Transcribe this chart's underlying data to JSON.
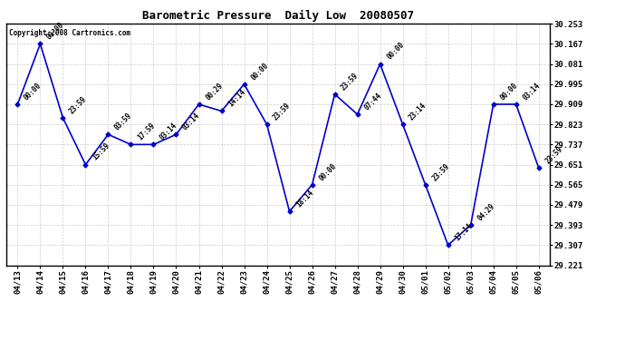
{
  "title": "Barometric Pressure  Daily Low  20080507",
  "copyright": "Copyright 2008 Cartronics.com",
  "line_color": "#0000cc",
  "marker_color": "#0000cc",
  "background_color": "#ffffff",
  "plot_bg_color": "#ffffff",
  "grid_color": "#cccccc",
  "text_color": "#000000",
  "ylim": [
    29.221,
    30.253
  ],
  "yticks": [
    29.221,
    29.307,
    29.393,
    29.479,
    29.565,
    29.651,
    29.737,
    29.823,
    29.909,
    29.995,
    30.081,
    30.167,
    30.253
  ],
  "categories": [
    "04/13",
    "04/14",
    "04/15",
    "04/16",
    "04/17",
    "04/18",
    "04/19",
    "04/20",
    "04/21",
    "04/22",
    "04/23",
    "04/24",
    "04/25",
    "04/26",
    "04/27",
    "04/28",
    "04/29",
    "04/30",
    "05/01",
    "05/02",
    "05/03",
    "05/04",
    "05/05",
    "05/06"
  ],
  "values": [
    29.909,
    30.167,
    29.851,
    29.651,
    29.78,
    29.737,
    29.737,
    29.78,
    29.909,
    29.88,
    29.995,
    29.823,
    29.451,
    29.565,
    29.952,
    29.866,
    30.081,
    29.823,
    29.565,
    29.307,
    29.393,
    29.909,
    29.909,
    29.637
  ],
  "annotations": [
    "00:00",
    "00:00",
    "23:59",
    "15:59",
    "03:59",
    "17:59",
    "03:14",
    "03:14",
    "00:29",
    "14:14",
    "00:00",
    "23:59",
    "18:14",
    "00:00",
    "23:59",
    "07:44",
    "00:00",
    "23:14",
    "23:59",
    "17:14",
    "04:29",
    "00:00",
    "03:14",
    "23:59"
  ]
}
